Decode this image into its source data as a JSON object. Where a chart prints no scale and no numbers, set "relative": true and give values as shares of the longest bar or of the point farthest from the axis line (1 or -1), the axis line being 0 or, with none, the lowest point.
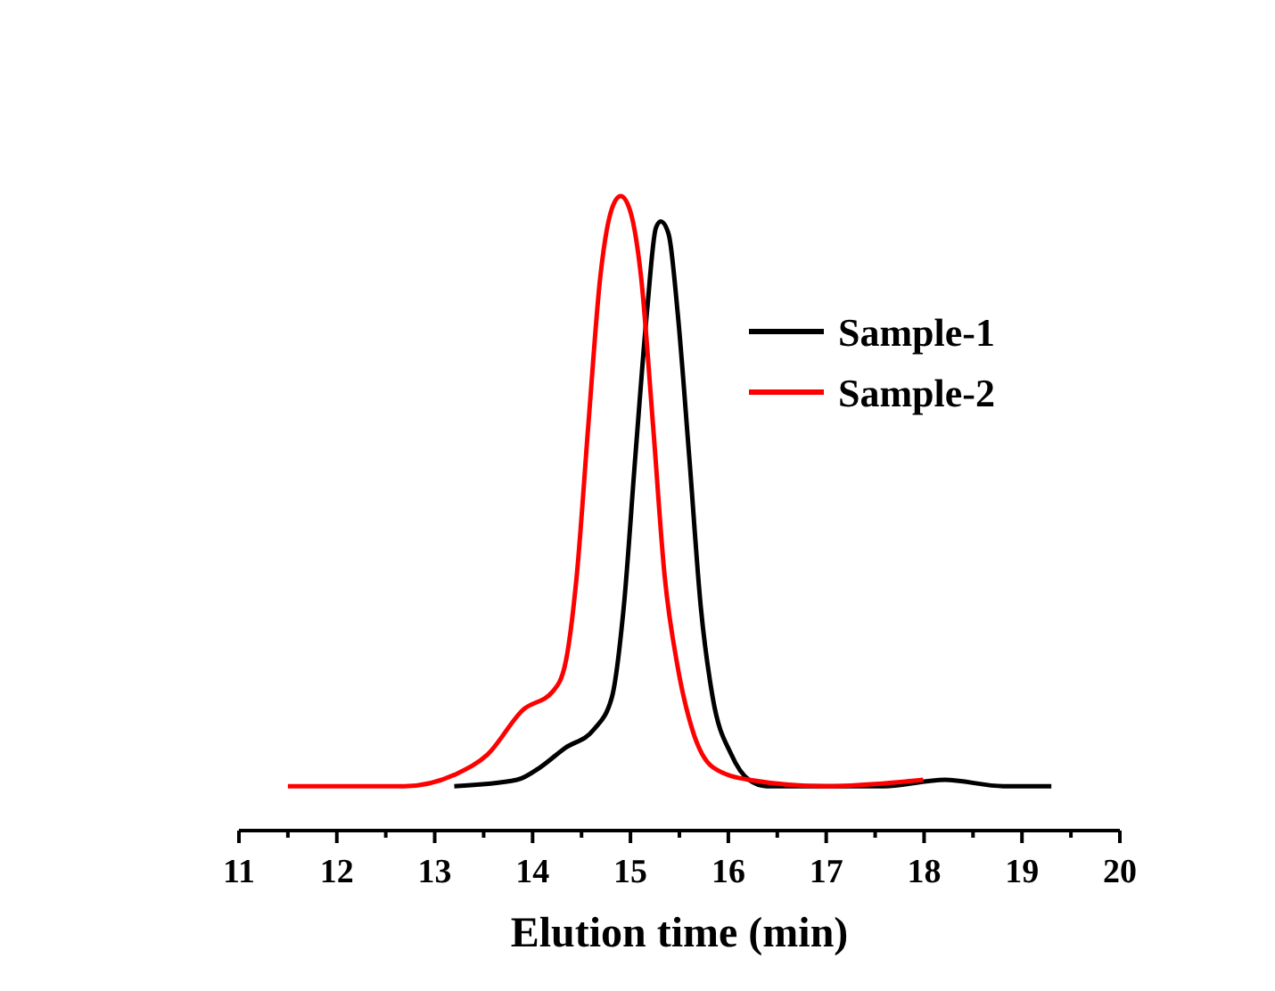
{
  "chart_data": {
    "type": "line",
    "relative": true,
    "xlabel": "Elution time (min)",
    "xlim": [
      11,
      20
    ],
    "xticks": [
      11,
      {
        "value": 11.5,
        "label": null
      },
      12,
      {
        "value": 12.5,
        "label": null
      },
      13,
      {
        "value": 13.5,
        "label": null
      },
      14,
      {
        "value": 14.5,
        "label": null
      },
      15,
      {
        "value": 15.5,
        "label": null
      },
      16,
      {
        "value": 16.5,
        "label": null
      },
      17,
      {
        "value": 17.5,
        "label": null
      },
      18,
      {
        "value": 18.5,
        "label": null
      },
      19,
      {
        "value": 19.5,
        "label": null
      },
      20
    ],
    "tick_labels": "x",
    "legend": "right",
    "marker": "none",
    "line_style": "solid",
    "grid": false,
    "series": [
      {
        "name": "Sample-1",
        "color": "#000000",
        "x": [
          13.2,
          13.84,
          14.08,
          14.33,
          14.63,
          14.81,
          14.93,
          15.05,
          15.17,
          15.26,
          15.31,
          15.39,
          15.48,
          15.6,
          15.72,
          15.84,
          16.03,
          16.21,
          16.39,
          17.6,
          18.21,
          18.81,
          19.3
        ],
        "values": [
          0.07,
          0.08,
          0.1,
          0.13,
          0.16,
          0.21,
          0.35,
          0.59,
          0.82,
          0.95,
          0.96,
          0.94,
          0.82,
          0.59,
          0.35,
          0.21,
          0.12,
          0.08,
          0.07,
          0.07,
          0.08,
          0.07,
          0.07
        ]
      },
      {
        "name": "Sample-2",
        "color": "#ff0000",
        "x": [
          11.5,
          12.69,
          13.23,
          13.54,
          13.9,
          14.21,
          14.33,
          14.45,
          14.57,
          14.69,
          14.81,
          14.9,
          14.99,
          15.11,
          15.23,
          15.35,
          15.48,
          15.63,
          15.84,
          16.21,
          16.99,
          17.99
        ],
        "values": [
          0.07,
          0.07,
          0.09,
          0.12,
          0.19,
          0.22,
          0.26,
          0.4,
          0.64,
          0.87,
          0.98,
          1,
          0.98,
          0.87,
          0.64,
          0.4,
          0.26,
          0.16,
          0.1,
          0.08,
          0.07,
          0.08
        ]
      }
    ]
  }
}
